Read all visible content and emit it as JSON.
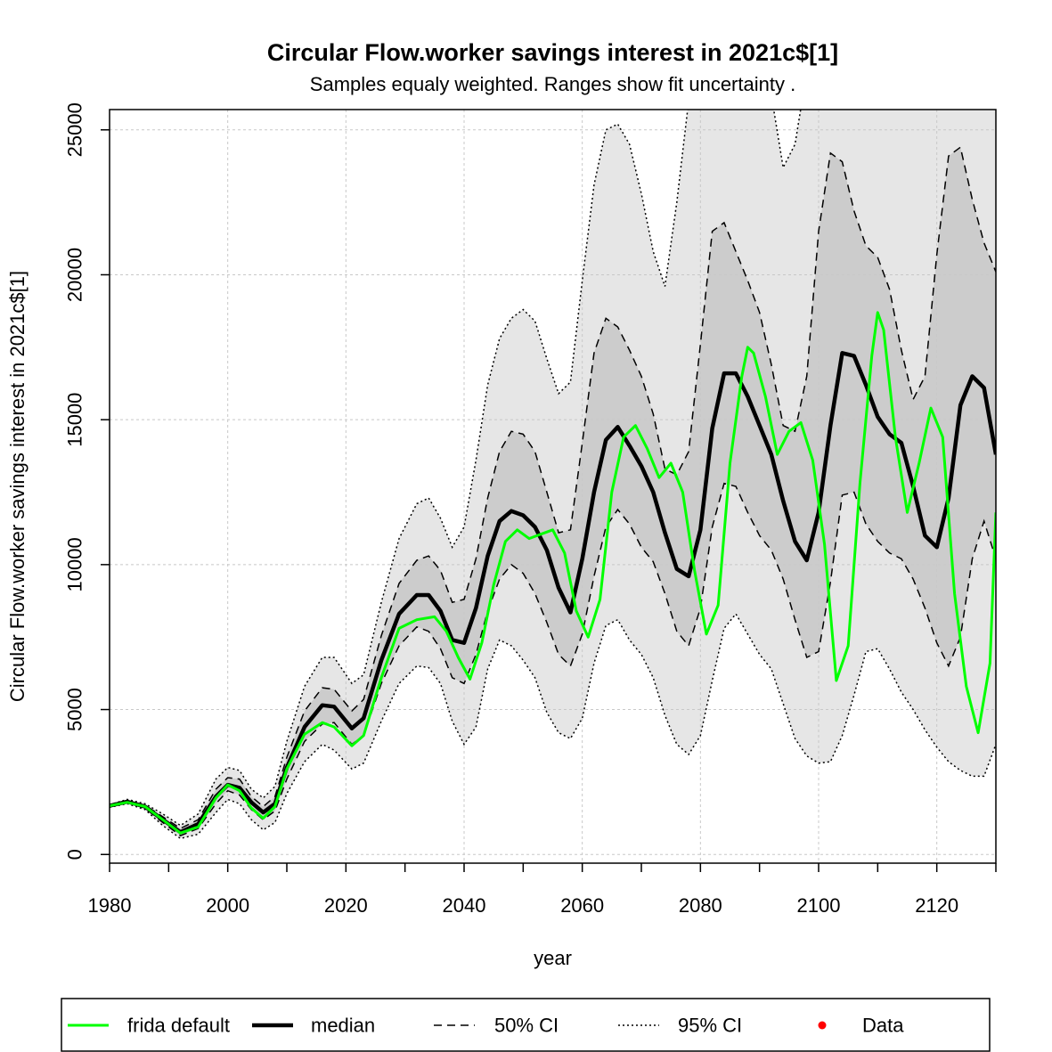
{
  "chart_data": {
    "type": "line",
    "title": "Circular Flow.worker savings interest in 2021c$[1]",
    "subtitle": "Samples equaly weighted. Ranges show  fit uncertainty .",
    "xlabel": "year",
    "ylabel": "Circular Flow.worker savings interest in 2021c$[1]",
    "xlim": [
      1980,
      2130
    ],
    "ylim": [
      -300,
      25700
    ],
    "x_ticks": [
      1980,
      2000,
      2020,
      2040,
      2060,
      2080,
      2100,
      2120
    ],
    "y_ticks": [
      0,
      5000,
      10000,
      15000,
      20000,
      25000
    ],
    "grid": true,
    "legend_position": "bottom",
    "legend": [
      {
        "label": "frida default",
        "style": "solid-green"
      },
      {
        "label": "median",
        "style": "solid-thick-black"
      },
      {
        "label": "50% CI",
        "style": "dashed"
      },
      {
        "label": "95% CI",
        "style": "dotted"
      },
      {
        "label": "Data",
        "style": "red-point"
      }
    ],
    "colors": {
      "frida": "#00ff00",
      "median": "#000000",
      "ci95_fill": "#e6e6e6",
      "ci50_fill": "#cccccc",
      "data": "#ff0000"
    },
    "series": [
      {
        "name": "median",
        "x": [
          1980,
          1983,
          1986,
          1989,
          1992,
          1995,
          1998,
          2000,
          2002,
          2004,
          2006,
          2008,
          2010,
          2013,
          2016,
          2018,
          2021,
          2023,
          2026,
          2029,
          2032,
          2034,
          2036,
          2038,
          2040,
          2042,
          2044,
          2046,
          2048,
          2050,
          2052,
          2054,
          2056,
          2058,
          2060,
          2062,
          2064,
          2066,
          2068,
          2070,
          2072,
          2074,
          2076,
          2078,
          2080,
          2082,
          2084,
          2086,
          2088,
          2090,
          2092,
          2094,
          2096,
          2098,
          2100,
          2102,
          2104,
          2106,
          2108,
          2110,
          2112,
          2114,
          2116,
          2118,
          2120,
          2122,
          2124,
          2126,
          2128,
          2130
        ],
        "values": [
          1680,
          1820,
          1650,
          1200,
          770,
          1050,
          2000,
          2400,
          2300,
          1800,
          1450,
          1750,
          3000,
          4400,
          5150,
          5100,
          4350,
          4700,
          6700,
          8300,
          8950,
          8950,
          8400,
          7400,
          7300,
          8500,
          10300,
          11500,
          11850,
          11700,
          11300,
          10500,
          9200,
          8350,
          10200,
          12500,
          14300,
          14750,
          14100,
          13400,
          12500,
          11100,
          9850,
          9600,
          11200,
          14700,
          16600,
          16600,
          15800,
          14800,
          13800,
          12200,
          10800,
          10150,
          11800,
          14800,
          17300,
          17200,
          16200,
          15100,
          14500,
          14200,
          12700,
          11000,
          10600,
          12300,
          15500,
          16500,
          16100,
          13800
        ]
      },
      {
        "name": "frida default",
        "x": [
          1980,
          1983,
          1986,
          1989,
          1992,
          1995,
          1998,
          2000,
          2002,
          2004,
          2006,
          2008,
          2010,
          2013,
          2016,
          2018,
          2021,
          2023,
          2026,
          2029,
          2032,
          2035,
          2037,
          2039,
          2041,
          2043,
          2045,
          2047,
          2049,
          2051,
          2053,
          2055,
          2057,
          2059,
          2061,
          2063,
          2065,
          2067,
          2069,
          2071,
          2073,
          2075,
          2077,
          2079,
          2081,
          2083,
          2085,
          2087,
          2088,
          2089,
          2091,
          2093,
          2095,
          2097,
          2099,
          2101,
          2103,
          2105,
          2107,
          2109,
          2110,
          2111,
          2113,
          2115,
          2117,
          2119,
          2121,
          2123,
          2125,
          2127,
          2129,
          2130
        ],
        "values": [
          1680,
          1800,
          1650,
          1200,
          740,
          950,
          1950,
          2400,
          2200,
          1600,
          1250,
          1650,
          2950,
          4150,
          4550,
          4400,
          3750,
          4100,
          6100,
          7800,
          8100,
          8200,
          7700,
          6800,
          6050,
          7300,
          9300,
          10800,
          11200,
          10900,
          11050,
          11200,
          10400,
          8400,
          7500,
          8800,
          12500,
          14400,
          14800,
          14000,
          13000,
          13500,
          12500,
          9800,
          7600,
          8600,
          13500,
          16500,
          17500,
          17300,
          15800,
          13800,
          14600,
          14900,
          13600,
          10700,
          6000,
          7200,
          12800,
          17200,
          18700,
          18100,
          14400,
          11800,
          13500,
          15400,
          14400,
          9000,
          5800,
          4200,
          6600,
          11800
        ]
      },
      {
        "name": "50% CI",
        "x": [
          1980,
          1983,
          1986,
          1989,
          1992,
          1995,
          1998,
          2000,
          2002,
          2004,
          2006,
          2008,
          2010,
          2013,
          2016,
          2018,
          2021,
          2023,
          2026,
          2029,
          2032,
          2034,
          2036,
          2038,
          2040,
          2042,
          2044,
          2046,
          2048,
          2050,
          2052,
          2054,
          2056,
          2058,
          2060,
          2062,
          2064,
          2066,
          2068,
          2070,
          2072,
          2074,
          2076,
          2078,
          2080,
          2082,
          2084,
          2086,
          2088,
          2090,
          2092,
          2094,
          2096,
          2098,
          2100,
          2102,
          2104,
          2106,
          2108,
          2110,
          2112,
          2114,
          2116,
          2118,
          2120,
          2122,
          2124,
          2126,
          2128,
          2130
        ],
        "upper": [
          1700,
          1850,
          1700,
          1300,
          900,
          1200,
          2250,
          2650,
          2600,
          2000,
          1650,
          2000,
          3350,
          4950,
          5750,
          5700,
          4950,
          5350,
          7550,
          9350,
          10150,
          10300,
          9800,
          8700,
          8800,
          10200,
          12300,
          13900,
          14600,
          14500,
          13900,
          12500,
          11100,
          11200,
          14200,
          17300,
          18500,
          18200,
          17400,
          16500,
          15200,
          13300,
          13100,
          13900,
          17600,
          21500,
          21800,
          20800,
          19800,
          18700,
          16900,
          14800,
          14600,
          16500,
          21500,
          24200,
          23900,
          22200,
          21000,
          20600,
          19500,
          17400,
          15700,
          16500,
          20700,
          24100,
          24400,
          22600,
          21100,
          20100
        ],
        "lower": [
          1650,
          1780,
          1600,
          1100,
          650,
          900,
          1750,
          2200,
          2050,
          1550,
          1200,
          1500,
          2600,
          3900,
          4500,
          4550,
          3800,
          4100,
          5900,
          7200,
          7850,
          7700,
          7100,
          6100,
          5900,
          6900,
          8400,
          9500,
          10000,
          9700,
          9000,
          8000,
          6900,
          6500,
          7600,
          9600,
          11300,
          11900,
          11400,
          10600,
          10100,
          9000,
          7700,
          7200,
          8500,
          11300,
          12800,
          12700,
          11800,
          11000,
          10500,
          9500,
          8100,
          6800,
          7000,
          9400,
          12400,
          12500,
          11400,
          10800,
          10400,
          10200,
          9500,
          8500,
          7300,
          6500,
          7500,
          10200,
          11500,
          10200
        ]
      },
      {
        "name": "95% CI",
        "x": [
          1980,
          1983,
          1986,
          1989,
          1992,
          1995,
          1998,
          2000,
          2002,
          2004,
          2006,
          2008,
          2010,
          2013,
          2016,
          2018,
          2021,
          2023,
          2026,
          2029,
          2032,
          2034,
          2036,
          2038,
          2040,
          2042,
          2044,
          2046,
          2048,
          2050,
          2052,
          2054,
          2056,
          2058,
          2060,
          2062,
          2064,
          2066,
          2068,
          2070,
          2072,
          2074,
          2076,
          2078,
          2080,
          2082,
          2084,
          2086,
          2088,
          2090,
          2092,
          2094,
          2096,
          2098,
          2100,
          2102,
          2104,
          2106,
          2108,
          2110,
          2112,
          2114,
          2116,
          2118,
          2120,
          2122,
          2124,
          2126,
          2128,
          2130
        ],
        "upper": [
          1720,
          1900,
          1750,
          1400,
          1000,
          1400,
          2600,
          3000,
          2900,
          2250,
          1950,
          2350,
          3900,
          5800,
          6800,
          6800,
          5900,
          6200,
          8700,
          10900,
          12100,
          12300,
          11600,
          10600,
          11300,
          13600,
          16200,
          17800,
          18500,
          18800,
          18400,
          17100,
          15900,
          16300,
          19800,
          23100,
          25000,
          25200,
          24500,
          22800,
          20800,
          19600,
          22500,
          26000,
          27000,
          27000,
          27000,
          27000,
          27000,
          27000,
          26200,
          23700,
          24500,
          27000,
          27000,
          27000,
          27000,
          27000,
          27000,
          27000,
          27000,
          27000,
          27000,
          27000,
          27000,
          27000,
          27000,
          27000,
          27000,
          27000
        ],
        "lower": [
          1630,
          1750,
          1550,
          1000,
          550,
          700,
          1450,
          1900,
          1750,
          1200,
          850,
          1100,
          2100,
          3200,
          3800,
          3600,
          2950,
          3150,
          4600,
          5900,
          6500,
          6450,
          5900,
          4600,
          3800,
          4400,
          6400,
          7400,
          7200,
          6700,
          6100,
          4900,
          4200,
          4000,
          4700,
          6600,
          7900,
          8100,
          7400,
          6900,
          6100,
          4800,
          3800,
          3450,
          4100,
          6000,
          7800,
          8300,
          7600,
          6900,
          6400,
          5200,
          4000,
          3400,
          3150,
          3200,
          4100,
          5500,
          7000,
          7100,
          6400,
          5600,
          5000,
          4300,
          3700,
          3200,
          2900,
          2700,
          2700,
          3800
        ]
      }
    ]
  }
}
